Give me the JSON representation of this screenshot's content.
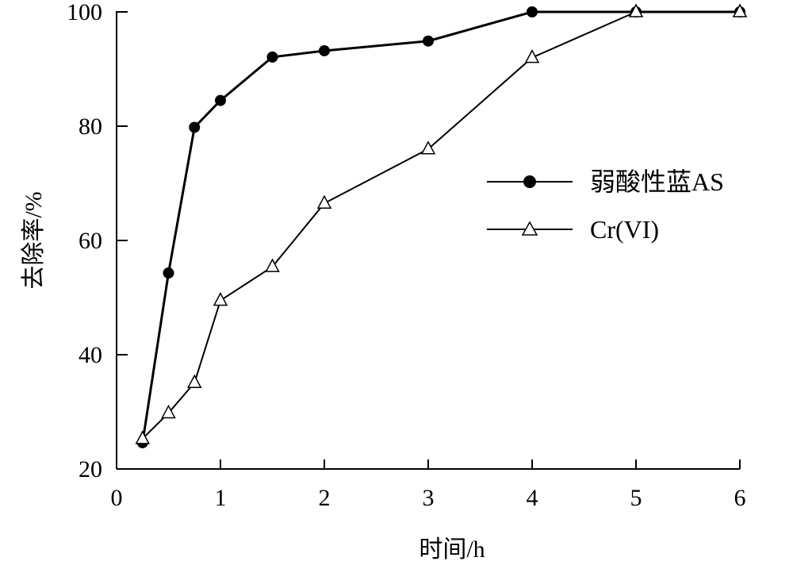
{
  "chart_data": {
    "type": "line",
    "title": "",
    "xlabel": "时间/h",
    "ylabel": "去除率/%",
    "xlim": [
      0,
      6
    ],
    "ylim": [
      20,
      100
    ],
    "xticks": [
      "0",
      "1",
      "2",
      "3",
      "4",
      "5",
      "6"
    ],
    "yticks": [
      "20",
      "40",
      "60",
      "80",
      "100"
    ],
    "grid": false,
    "legend_position": "right-middle",
    "series": [
      {
        "name": "弱酸性蓝AS",
        "marker": "filled-circle",
        "color": "#000000",
        "x": [
          0.25,
          0.5,
          0.75,
          1,
          1.5,
          2,
          3,
          4,
          5,
          6
        ],
        "y": [
          24.6,
          54.3,
          79.8,
          84.5,
          92.1,
          93.2,
          94.9,
          100,
          100,
          100
        ]
      },
      {
        "name": "Cr(VI)",
        "marker": "open-triangle",
        "color": "#000000",
        "x": [
          0.25,
          0.5,
          0.75,
          1,
          1.5,
          2,
          3,
          4,
          5,
          6
        ],
        "y": [
          25.3,
          29.8,
          35.1,
          49.5,
          55.4,
          66.5,
          76.0,
          92.0,
          100,
          100
        ]
      }
    ]
  }
}
